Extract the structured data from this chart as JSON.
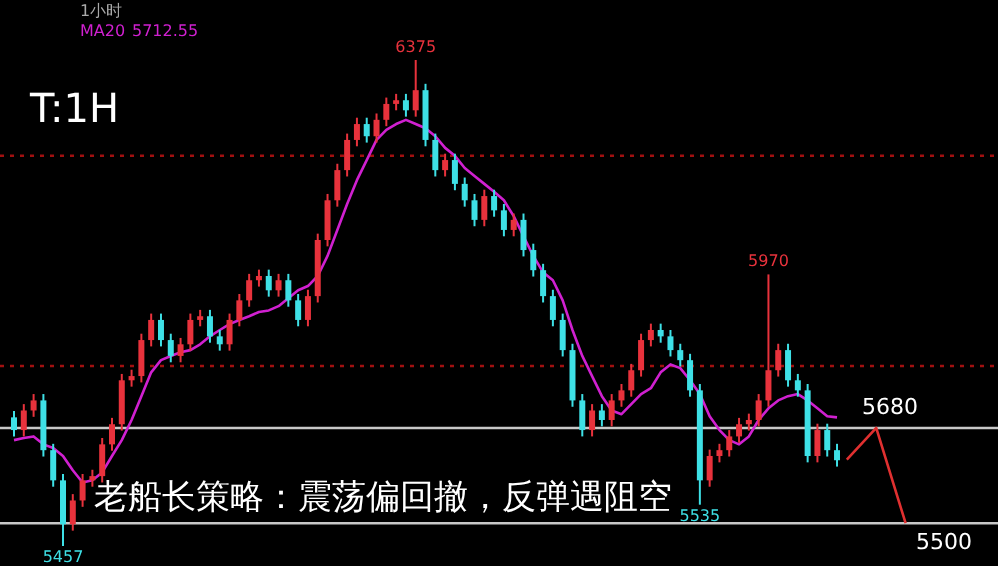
{
  "chart_data": {
    "type": "candlestick",
    "categories": [
      null,
      null,
      null,
      null,
      null,
      null,
      null,
      null,
      null,
      null,
      null,
      null,
      null,
      null,
      null,
      null,
      null,
      null,
      null,
      null,
      null,
      null,
      null,
      null,
      null,
      null,
      null,
      null,
      null,
      null,
      null,
      null,
      null,
      null,
      null,
      null,
      null,
      null,
      null,
      null,
      null,
      null,
      null,
      null,
      null,
      null,
      null,
      null,
      null,
      null,
      null,
      null,
      null,
      null,
      null,
      null,
      null,
      null,
      null,
      null,
      null,
      null,
      null,
      null,
      null,
      null,
      null,
      null,
      null,
      null,
      null,
      null,
      null,
      null,
      null,
      null,
      null,
      null,
      null,
      null,
      null,
      null,
      null,
      null,
      null,
      null,
      null,
      null,
      null,
      null,
      null,
      null,
      null,
      null,
      null,
      null,
      null,
      null,
      null,
      null
    ],
    "ohlc": [
      [
        5700,
        5712,
        5664,
        5676
      ],
      [
        5676,
        5725,
        5664,
        5713
      ],
      [
        5713,
        5744,
        5701,
        5732
      ],
      [
        5732,
        5744,
        5626,
        5638
      ],
      [
        5638,
        5650,
        5569,
        5581
      ],
      [
        5581,
        5593,
        5457,
        5498
      ],
      [
        5498,
        5555,
        5486,
        5543
      ],
      [
        5543,
        5593,
        5531,
        5581
      ],
      [
        5581,
        5601,
        5569,
        5589
      ],
      [
        5589,
        5661,
        5577,
        5649
      ],
      [
        5649,
        5699,
        5637,
        5687
      ],
      [
        5687,
        5782,
        5675,
        5770
      ],
      [
        5770,
        5790,
        5758,
        5778
      ],
      [
        5778,
        5858,
        5766,
        5846
      ],
      [
        5846,
        5896,
        5834,
        5884
      ],
      [
        5884,
        5896,
        5834,
        5846
      ],
      [
        5846,
        5858,
        5804,
        5816
      ],
      [
        5816,
        5850,
        5804,
        5838
      ],
      [
        5838,
        5896,
        5826,
        5884
      ],
      [
        5884,
        5903,
        5872,
        5891
      ],
      [
        5891,
        5903,
        5841,
        5853
      ],
      [
        5853,
        5865,
        5826,
        5838
      ],
      [
        5838,
        5896,
        5826,
        5884
      ],
      [
        5884,
        5933,
        5872,
        5921
      ],
      [
        5921,
        5971,
        5909,
        5959
      ],
      [
        5959,
        5979,
        5947,
        5967
      ],
      [
        5967,
        5979,
        5928,
        5940
      ],
      [
        5940,
        5971,
        5928,
        5959
      ],
      [
        5959,
        5971,
        5909,
        5921
      ],
      [
        5921,
        5933,
        5872,
        5884
      ],
      [
        5884,
        5941,
        5872,
        5929
      ],
      [
        5929,
        6047,
        5917,
        6035
      ],
      [
        6035,
        6122,
        6023,
        6110
      ],
      [
        6110,
        6179,
        6098,
        6167
      ],
      [
        6167,
        6236,
        6155,
        6224
      ],
      [
        6224,
        6266,
        6212,
        6254
      ],
      [
        6254,
        6266,
        6219,
        6231
      ],
      [
        6231,
        6274,
        6219,
        6262
      ],
      [
        6262,
        6304,
        6250,
        6292
      ],
      [
        6292,
        6311,
        6280,
        6299
      ],
      [
        6299,
        6311,
        6268,
        6280
      ],
      [
        6280,
        6375,
        6268,
        6318
      ],
      [
        6318,
        6330,
        6212,
        6224
      ],
      [
        6224,
        6236,
        6155,
        6167
      ],
      [
        6167,
        6198,
        6155,
        6186
      ],
      [
        6186,
        6198,
        6129,
        6141
      ],
      [
        6141,
        6153,
        6098,
        6110
      ],
      [
        6110,
        6122,
        6061,
        6073
      ],
      [
        6073,
        6130,
        6061,
        6118
      ],
      [
        6118,
        6130,
        6079,
        6091
      ],
      [
        6091,
        6103,
        6042,
        6054
      ],
      [
        6054,
        6085,
        6042,
        6073
      ],
      [
        6073,
        6085,
        6004,
        6016
      ],
      [
        6016,
        6028,
        5966,
        5978
      ],
      [
        5978,
        5990,
        5917,
        5929
      ],
      [
        5929,
        5941,
        5872,
        5884
      ],
      [
        5884,
        5896,
        5815,
        5827
      ],
      [
        5827,
        5839,
        5720,
        5732
      ],
      [
        5732,
        5744,
        5664,
        5676
      ],
      [
        5676,
        5725,
        5664,
        5713
      ],
      [
        5713,
        5725,
        5683,
        5695
      ],
      [
        5695,
        5744,
        5683,
        5732
      ],
      [
        5732,
        5763,
        5720,
        5751
      ],
      [
        5751,
        5801,
        5739,
        5789
      ],
      [
        5789,
        5858,
        5777,
        5846
      ],
      [
        5846,
        5877,
        5834,
        5865
      ],
      [
        5865,
        5877,
        5841,
        5853
      ],
      [
        5853,
        5865,
        5815,
        5827
      ],
      [
        5827,
        5839,
        5796,
        5808
      ],
      [
        5808,
        5820,
        5739,
        5751
      ],
      [
        5751,
        5763,
        5535,
        5581
      ],
      [
        5581,
        5639,
        5569,
        5627
      ],
      [
        5627,
        5650,
        5615,
        5638
      ],
      [
        5638,
        5676,
        5626,
        5664
      ],
      [
        5664,
        5699,
        5652,
        5687
      ],
      [
        5687,
        5707,
        5675,
        5695
      ],
      [
        5695,
        5744,
        5683,
        5732
      ],
      [
        5732,
        5970,
        5720,
        5789
      ],
      [
        5789,
        5839,
        5777,
        5827
      ],
      [
        5827,
        5839,
        5758,
        5770
      ],
      [
        5770,
        5782,
        5739,
        5751
      ],
      [
        5751,
        5763,
        5615,
        5627
      ],
      [
        5627,
        5688,
        5615,
        5676
      ],
      [
        5676,
        5688,
        5626,
        5638
      ],
      [
        5638,
        5650,
        5607,
        5619
      ],
      null,
      null,
      null,
      null,
      null,
      null,
      null,
      null,
      null,
      null,
      null,
      null,
      null,
      null,
      null
    ],
    "colors": [
      "#3ee0e6",
      "#e8323c",
      "#e8323c",
      "#3ee0e6",
      "#3ee0e6",
      "#3ee0e6",
      "#e8323c",
      "#e8323c",
      "#e8323c",
      "#e8323c",
      "#e8323c",
      "#e8323c",
      "#e8323c",
      "#e8323c",
      "#e8323c",
      "#3ee0e6",
      "#3ee0e6",
      "#e8323c",
      "#e8323c",
      "#e8323c",
      "#3ee0e6",
      "#3ee0e6",
      "#e8323c",
      "#e8323c",
      "#e8323c",
      "#e8323c",
      "#3ee0e6",
      "#e8323c",
      "#3ee0e6",
      "#3ee0e6",
      "#e8323c",
      "#e8323c",
      "#e8323c",
      "#e8323c",
      "#e8323c",
      "#e8323c",
      "#3ee0e6",
      "#e8323c",
      "#e8323c",
      "#e8323c",
      "#3ee0e6",
      "#e8323c",
      "#3ee0e6",
      "#3ee0e6",
      "#e8323c",
      "#3ee0e6",
      "#3ee0e6",
      "#3ee0e6",
      "#e8323c",
      "#3ee0e6",
      "#3ee0e6",
      "#e8323c",
      "#3ee0e6",
      "#3ee0e6",
      "#3ee0e6",
      "#3ee0e6",
      "#3ee0e6",
      "#3ee0e6",
      "#3ee0e6",
      "#e8323c",
      "#3ee0e6",
      "#e8323c",
      "#e8323c",
      "#e8323c",
      "#e8323c",
      "#e8323c",
      "#3ee0e6",
      "#3ee0e6",
      "#3ee0e6",
      "#3ee0e6",
      "#3ee0e6",
      "#e8323c",
      "#e8323c",
      "#e8323c",
      "#e8323c",
      "#e8323c",
      "#e8323c",
      "#e8323c",
      "#e8323c",
      "#3ee0e6",
      "#3ee0e6",
      "#3ee0e6",
      "#e8323c",
      "#3ee0e6",
      "#3ee0e6",
      null,
      null,
      null,
      null,
      null,
      null,
      null,
      null,
      null,
      null,
      null,
      null,
      null,
      null,
      null
    ],
    "series": [
      {
        "name": "MA20",
        "type": "line",
        "color": "#d020d0",
        "values": [
          5657,
          5661,
          5664,
          5649,
          5642,
          5627,
          5600,
          5577,
          5581,
          5596,
          5627,
          5657,
          5695,
          5740,
          5785,
          5808,
          5816,
          5823,
          5827,
          5838,
          5853,
          5865,
          5876,
          5884,
          5891,
          5899,
          5902,
          5910,
          5925,
          5940,
          5948,
          5967,
          6005,
          6054,
          6103,
          6148,
          6186,
          6224,
          6243,
          6254,
          6262,
          6254,
          6246,
          6231,
          6209,
          6194,
          6171,
          6156,
          6141,
          6126,
          6110,
          6080,
          6042,
          6005,
          5974,
          5959,
          5921,
          5865,
          5816,
          5778,
          5740,
          5713,
          5706,
          5725,
          5744,
          5755,
          5785,
          5800,
          5793,
          5770,
          5744,
          5702,
          5676,
          5657,
          5649,
          5664,
          5695,
          5717,
          5732,
          5740,
          5744,
          5732,
          5717,
          5702,
          5700,
          null,
          null,
          null,
          null,
          null,
          null,
          null,
          null,
          null,
          null,
          null,
          null,
          null,
          null,
          null
        ]
      },
      {
        "type": "line",
        "color": "#e03030",
        "values": [
          null,
          null,
          null,
          null,
          null,
          null,
          null,
          null,
          null,
          null,
          null,
          null,
          null,
          null,
          null,
          null,
          null,
          null,
          null,
          null,
          null,
          null,
          null,
          null,
          null,
          null,
          null,
          null,
          null,
          null,
          null,
          null,
          null,
          null,
          null,
          null,
          null,
          null,
          null,
          null,
          null,
          null,
          null,
          null,
          null,
          null,
          null,
          null,
          null,
          null,
          null,
          null,
          null,
          null,
          null,
          null,
          null,
          null,
          null,
          null,
          null,
          null,
          null,
          null,
          null,
          null,
          null,
          null,
          null,
          null,
          null,
          null,
          null,
          null,
          null,
          null,
          null,
          null,
          null,
          null,
          null,
          null,
          null,
          null,
          null,
          5620,
          null,
          null,
          5680,
          null,
          null,
          5500,
          null,
          null,
          null,
          null,
          null,
          null,
          null,
          null
        ]
      }
    ],
    "ref_lines": [
      {
        "axis": "y",
        "value": 5680,
        "label": "5680",
        "color": "#c8c8c8"
      },
      {
        "axis": "y",
        "value": 5500,
        "label": "5500",
        "color": "#c8c8c8"
      },
      {
        "axis": "y",
        "value": 6194,
        "color": "#a01010",
        "line_style": "dotted"
      },
      {
        "axis": "y",
        "value": 5797,
        "color": "#a01010",
        "line_style": "dotted"
      }
    ],
    "annotations": [
      "1小时",
      "5712.55",
      "T:1H",
      "老船长策略：震荡偏回撤，反弹遇阻空",
      {
        "text": "6375",
        "y": 6375
      },
      {
        "text": "5970",
        "y": 5970
      },
      {
        "text": "5535",
        "y": 5535
      },
      {
        "text": "5457",
        "y": 5457
      }
    ]
  }
}
